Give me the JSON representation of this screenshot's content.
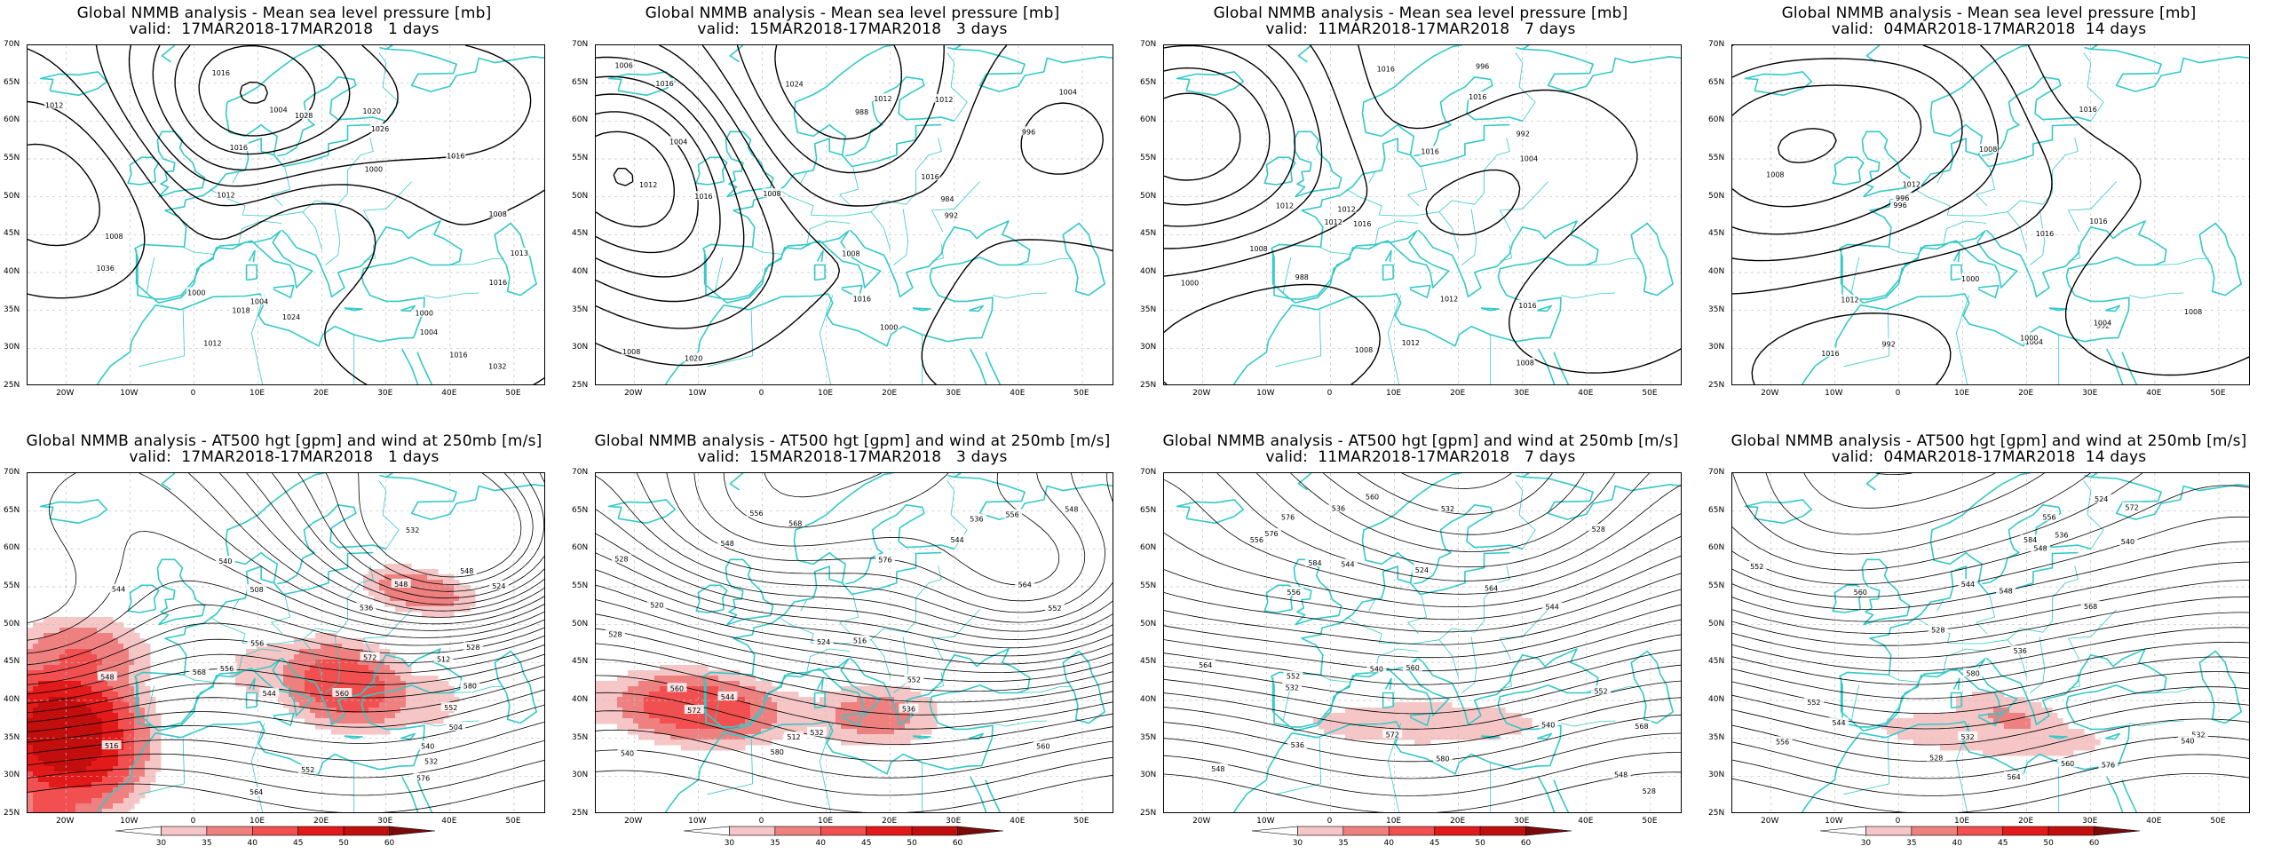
{
  "panels": [
    {
      "title1": "Global NMMB analysis - Mean sea level pressure [mb]",
      "title2": "valid:  17MAR2018-17MAR2018   1 days",
      "kind": "mslp",
      "seed": 1,
      "labels": [
        "1028",
        "1032",
        "1036",
        "1026",
        "1024",
        "1020",
        "1018",
        "1016",
        "1012",
        "1013",
        "1008",
        "1004",
        "1000",
        "1004",
        "1000",
        "1008",
        "1012",
        "1016",
        "1016",
        "1016",
        "1000",
        "1004",
        "1012",
        "1016"
      ]
    },
    {
      "title1": "Global NMMB analysis - Mean sea level pressure [mb]",
      "title2": "valid:  15MAR2018-17MAR2018   3 days",
      "kind": "mslp",
      "seed": 2,
      "labels": [
        "1024",
        "1020",
        "1016",
        "1012",
        "1008",
        "984",
        "988",
        "992",
        "996",
        "1000",
        "1004",
        "1008",
        "1012",
        "1016",
        "1016",
        "1008",
        "1004",
        "1016",
        "1012",
        "1006"
      ]
    },
    {
      "title1": "Global NMMB analysis - Mean sea level pressure [mb]",
      "title2": "valid:  11MAR2018-17MAR2018   7 days",
      "kind": "mslp",
      "seed": 3,
      "labels": [
        "1012",
        "1008",
        "988",
        "1016",
        "1012",
        "992",
        "996",
        "1000",
        "1004",
        "1008",
        "1012",
        "1016",
        "1012",
        "1008",
        "1016",
        "1016",
        "1012",
        "1016"
      ]
    },
    {
      "title1": "Global NMMB analysis - Mean sea level pressure [mb]",
      "title2": "valid:  04MAR2018-17MAR2018  14 days",
      "kind": "mslp",
      "seed": 4,
      "labels": [
        "1008",
        "1004",
        "996",
        "992",
        "1000",
        "1016",
        "992",
        "996",
        "1000",
        "1004",
        "1008",
        "1012",
        "1016",
        "1012",
        "1008",
        "1016",
        "1016"
      ]
    },
    {
      "title1": "Global NMMB analysis - AT500 hgt [gpm] and wind at 250mb [m/s]",
      "title2": "valid:  17MAR2018-17MAR2018   1 days",
      "kind": "z500",
      "seed": 5,
      "labels": [
        "548",
        "532",
        "540",
        "544",
        "556",
        "548",
        "552",
        "560",
        "564",
        "568",
        "572",
        "576",
        "580",
        "524",
        "516",
        "528",
        "532",
        "540",
        "536",
        "544",
        "548",
        "552",
        "556",
        "508",
        "504",
        "512"
      ]
    },
    {
      "title1": "Global NMMB analysis - AT500 hgt [gpm] and wind at 250mb [m/s]",
      "title2": "valid:  15MAR2018-17MAR2018   3 days",
      "kind": "z500",
      "seed": 6,
      "labels": [
        "544",
        "540",
        "524",
        "528",
        "532",
        "536",
        "548",
        "552",
        "556",
        "560",
        "564",
        "568",
        "572",
        "576",
        "580",
        "520",
        "512",
        "516",
        "528",
        "536",
        "544",
        "548",
        "552",
        "556",
        "560"
      ]
    },
    {
      "title1": "Global NMMB analysis - AT500 hgt [gpm] and wind at 250mb [m/s]",
      "title2": "valid:  11MAR2018-17MAR2018   7 days",
      "kind": "z500",
      "seed": 7,
      "labels": [
        "532",
        "536",
        "524",
        "528",
        "540",
        "544",
        "548",
        "552",
        "556",
        "560",
        "564",
        "568",
        "572",
        "576",
        "580",
        "584",
        "528",
        "532",
        "536",
        "540",
        "544",
        "548",
        "552",
        "556",
        "560",
        "564",
        "576"
      ]
    },
    {
      "title1": "Global NMMB analysis - AT500 hgt [gpm] and wind at 250mb [m/s]",
      "title2": "valid:  04MAR2018-17MAR2018  14 days",
      "kind": "z500",
      "seed": 8,
      "labels": [
        "528",
        "532",
        "536",
        "524",
        "528",
        "540",
        "544",
        "548",
        "552",
        "556",
        "560",
        "564",
        "568",
        "572",
        "576",
        "580",
        "584",
        "532",
        "536",
        "540",
        "544",
        "548",
        "552",
        "556",
        "560"
      ]
    }
  ],
  "lat_labels": [
    "70N",
    "65N",
    "60N",
    "55N",
    "50N",
    "45N",
    "40N",
    "35N",
    "30N",
    "25N"
  ],
  "lon_labels": [
    "20W",
    "10W",
    "0",
    "10E",
    "20E",
    "30E",
    "40E",
    "50E"
  ],
  "colorbar_labels": [
    "30",
    "35",
    "40",
    "45",
    "50",
    "60"
  ],
  "colors": {
    "coast": "#35c8c8",
    "contour": "#000000",
    "shade_light": "#f6c6c6",
    "shade_mid": "#ef8080",
    "shade_strong": "#e21a1a",
    "shade_dark": "#7a0a0a",
    "grid": "#bfbfbf"
  }
}
